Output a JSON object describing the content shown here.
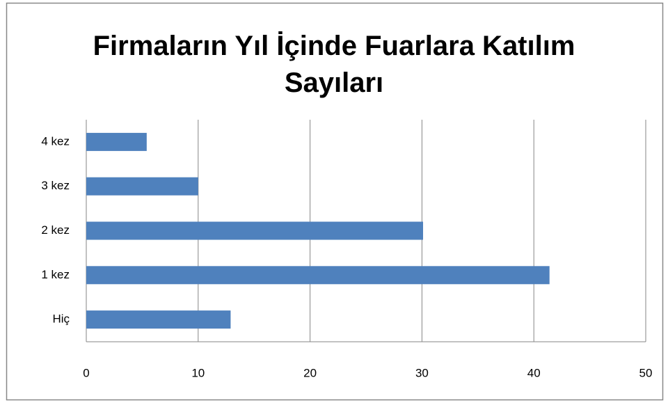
{
  "chart_data": {
    "type": "bar",
    "orientation": "horizontal",
    "title": "Firmaların Yıl İçinde Fuarlara Katılım Sayıları",
    "categories": [
      "Hiç",
      "1 kez",
      "2 kez",
      "3 kez",
      "4 kez"
    ],
    "values": [
      12.9,
      41.4,
      30.1,
      10,
      5.4
    ],
    "color": "#4f81bd",
    "xlim": [
      0,
      50
    ],
    "xticks": [
      0,
      10,
      20,
      30,
      40,
      50
    ],
    "grid": true
  }
}
